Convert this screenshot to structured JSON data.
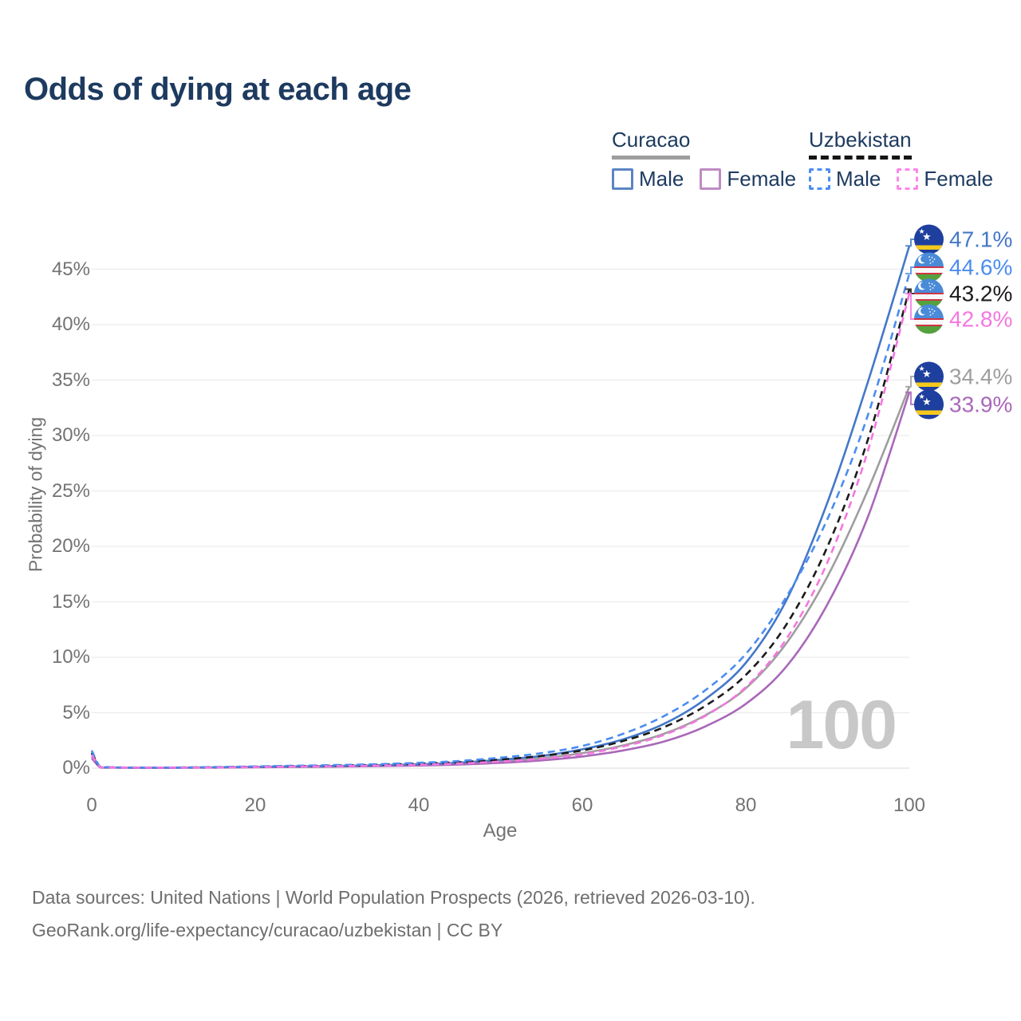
{
  "title": "Odds of dying at each age",
  "legend": {
    "curacao": {
      "name": "Curacao",
      "line_style": "solid",
      "underline_color": "#9e9e9e",
      "male_label": "Male",
      "male_color": "#5b84c4",
      "female_label": "Female",
      "female_color": "#bf8cc4"
    },
    "uzbekistan": {
      "name": "Uzbekistan",
      "line_style": "dashed",
      "underline_color": "#151515",
      "male_label": "Male",
      "male_color": "#4b8df0",
      "female_label": "Female",
      "female_color": "#fb86e8"
    }
  },
  "watermark_age": "100",
  "footer": {
    "line1": "Data sources: United Nations | World Population Prospects (2026, retrieved 2026-03-10).",
    "line2": "GeoRank.org/life-expectancy/curacao/uzbekistan | CC BY"
  },
  "chart_data": {
    "type": "line",
    "title": "Odds of dying at each age",
    "xlabel": "Age",
    "ylabel": "Probability of dying",
    "xlim": [
      0,
      100
    ],
    "ylim": [
      0,
      48
    ],
    "x_ticks": [
      0,
      20,
      40,
      60,
      80,
      100
    ],
    "y_ticks": [
      {
        "value": 0,
        "label": "0%"
      },
      {
        "value": 5,
        "label": "5%"
      },
      {
        "value": 10,
        "label": "10%"
      },
      {
        "value": 15,
        "label": "15%"
      },
      {
        "value": 20,
        "label": "20%"
      },
      {
        "value": 25,
        "label": "25%"
      },
      {
        "value": 30,
        "label": "30%"
      },
      {
        "value": 35,
        "label": "35%"
      },
      {
        "value": 40,
        "label": "40%"
      },
      {
        "value": 45,
        "label": "45%"
      }
    ],
    "grid": "horizontal",
    "legend_position": "top-right",
    "ages": [
      0,
      1,
      2,
      5,
      10,
      15,
      20,
      25,
      30,
      35,
      40,
      45,
      50,
      55,
      60,
      65,
      70,
      75,
      80,
      85,
      90,
      95,
      100
    ],
    "series": [
      {
        "name": "Curacao",
        "flag": "curacao",
        "sex": "all",
        "color": "#9e9e9e",
        "dashed": false,
        "end_value": 34.4,
        "end_label": "34.4%",
        "values": [
          1.05,
          0.1,
          0.06,
          0.035,
          0.035,
          0.06,
          0.1,
          0.14,
          0.17,
          0.22,
          0.3,
          0.42,
          0.62,
          0.9,
          1.35,
          2.05,
          3.1,
          4.75,
          7.2,
          11.3,
          17.3,
          25.2,
          34.4
        ]
      },
      {
        "name": "Curacao Female",
        "flag": "curacao",
        "sex": "female",
        "color": "#a968b8",
        "dashed": false,
        "end_value": 33.9,
        "end_label": "33.9%",
        "values": [
          0.9,
          0.08,
          0.05,
          0.03,
          0.03,
          0.05,
          0.08,
          0.11,
          0.14,
          0.18,
          0.24,
          0.33,
          0.48,
          0.7,
          1.05,
          1.6,
          2.4,
          3.75,
          5.8,
          9.2,
          14.8,
          22.8,
          33.9
        ]
      },
      {
        "name": "Curacao Male",
        "flag": "curacao",
        "sex": "male",
        "color": "#4478c8",
        "dashed": false,
        "end_value": 47.1,
        "end_label": "47.1%",
        "values": [
          1.3,
          0.12,
          0.07,
          0.04,
          0.04,
          0.07,
          0.12,
          0.16,
          0.2,
          0.26,
          0.35,
          0.5,
          0.75,
          1.1,
          1.7,
          2.6,
          4.0,
          6.2,
          9.5,
          15.2,
          24.0,
          35.0,
          47.1
        ]
      },
      {
        "name": "Uzbekistan",
        "flag": "uzbekistan",
        "sex": "all",
        "color": "#1b1b1b",
        "dashed": true,
        "end_value": 43.2,
        "end_label": "43.2%",
        "values": [
          1.4,
          0.13,
          0.08,
          0.05,
          0.05,
          0.08,
          0.13,
          0.18,
          0.23,
          0.3,
          0.4,
          0.54,
          0.78,
          1.1,
          1.6,
          2.45,
          3.7,
          5.6,
          8.4,
          13.0,
          20.0,
          29.8,
          43.2
        ]
      },
      {
        "name": "Uzbekistan Male",
        "flag": "uzbekistan",
        "sex": "male",
        "color": "#4b8df0",
        "dashed": true,
        "end_value": 44.6,
        "end_label": "44.6%",
        "values": [
          1.6,
          0.15,
          0.09,
          0.06,
          0.06,
          0.1,
          0.16,
          0.22,
          0.28,
          0.36,
          0.48,
          0.65,
          0.95,
          1.35,
          2.0,
          3.1,
          4.7,
          7.0,
          10.3,
          15.5,
          22.5,
          32.0,
          44.6
        ]
      },
      {
        "name": "Uzbekistan Female",
        "flag": "uzbekistan",
        "sex": "female",
        "color": "#f576e0",
        "dashed": true,
        "end_value": 42.8,
        "end_label": "42.8%",
        "values": [
          1.2,
          0.11,
          0.07,
          0.04,
          0.04,
          0.06,
          0.1,
          0.14,
          0.18,
          0.23,
          0.3,
          0.42,
          0.6,
          0.85,
          1.25,
          1.95,
          3.0,
          4.7,
          7.3,
          11.7,
          18.6,
          28.8,
          42.8
        ]
      }
    ]
  }
}
